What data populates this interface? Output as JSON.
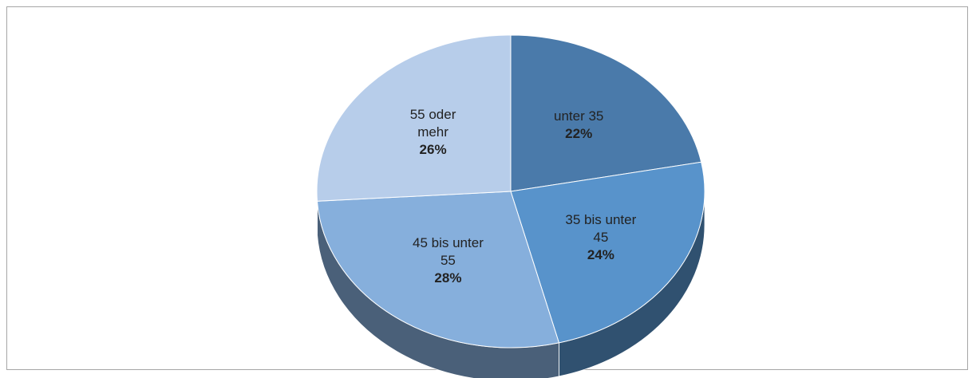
{
  "chart_data": {
    "type": "pie",
    "categories": [
      "unter 35",
      "35 bis unter 45",
      "45 bis unter 55",
      "55 oder mehr"
    ],
    "values": [
      22,
      24,
      28,
      26
    ],
    "value_labels": [
      "22%",
      "24%",
      "28%",
      "26%"
    ],
    "colors": [
      "#4a7aaa",
      "#5893cb",
      "#86afdc",
      "#b7cdea"
    ]
  }
}
